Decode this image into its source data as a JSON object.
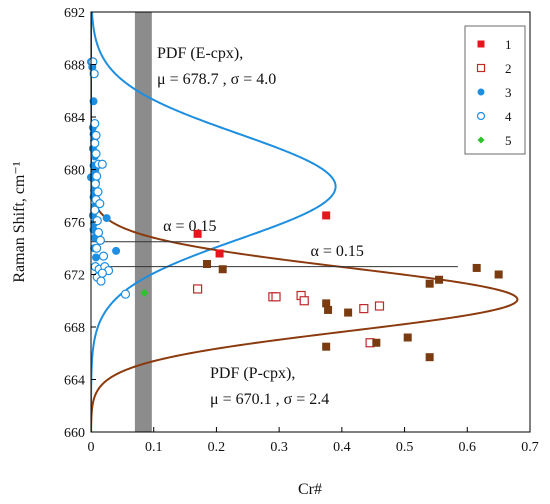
{
  "chart_data": {
    "type": "scatter",
    "xlabel": "Cr#",
    "ylabel": "Raman Shift, cm⁻¹",
    "xlim": [
      0,
      0.7
    ],
    "ylim": [
      660,
      692
    ],
    "xticks": [
      "0",
      "0.1",
      "0.2",
      "0.3",
      "0.4",
      "0.5",
      "0.6",
      "0.7"
    ],
    "yticks": [
      "660",
      "664",
      "668",
      "672",
      "676",
      "680",
      "684",
      "688",
      "692"
    ],
    "shaded_band": {
      "x_from": 0.07,
      "x_to": 0.097,
      "color": "#8c8c8c"
    },
    "distributions": [
      {
        "name": "PDF (E-cpx)",
        "label_line1": "PDF (E-cpx),",
        "label_line2": "μ = 678.7 , σ = 4.0",
        "mu": 678.7,
        "sigma": 4.0,
        "peak_cr": 0.39,
        "color": "#1e8fe0"
      },
      {
        "name": "PDF (P-cpx)",
        "label_line1": "PDF (P-cpx),",
        "label_line2": "μ = 670.1 , σ = 2.4",
        "mu": 670.1,
        "sigma": 2.4,
        "peak_cr": 0.68,
        "color": "#8b3a0e"
      }
    ],
    "thresholds": [
      {
        "label": "α = 0.15",
        "y": 674.5,
        "x_end": 0.205,
        "label_x": 0.115,
        "label_y": 675.3
      },
      {
        "label": "α = 0.15",
        "y": 672.6,
        "x_end": 0.585,
        "label_x": 0.35,
        "label_y": 673.4
      }
    ],
    "legend": {
      "position": "top-right",
      "entries": [
        {
          "label": "1",
          "marker": "square-filled",
          "color": "#e8141c"
        },
        {
          "label": "2",
          "marker": "square-open",
          "color": "#c0282c"
        },
        {
          "label": "3",
          "marker": "circle-filled",
          "color": "#1e8fe0"
        },
        {
          "label": "4",
          "marker": "circle-open",
          "color": "#1e8fe0"
        },
        {
          "label": "5",
          "marker": "diamond-filled",
          "color": "#2ec32e"
        }
      ]
    },
    "series": [
      {
        "name": "1",
        "marker": "square-filled",
        "color": "#e8141c",
        "points": [
          [
            0.17,
            675.1
          ],
          [
            0.205,
            673.6
          ],
          [
            0.375,
            676.5
          ]
        ]
      },
      {
        "name": "2",
        "marker": "square-open",
        "color": "#c0282c",
        "points": [
          [
            0.17,
            670.9
          ],
          [
            0.29,
            670.3
          ],
          [
            0.295,
            670.3
          ],
          [
            0.335,
            670.4
          ],
          [
            0.34,
            670.0
          ],
          [
            0.435,
            669.4
          ],
          [
            0.445,
            666.8
          ],
          [
            0.46,
            669.6
          ]
        ]
      },
      {
        "name": "3",
        "marker": "circle-filled",
        "color": "#1e8fe0",
        "points": [
          [
            0.0,
            688.2
          ],
          [
            0.002,
            687.8
          ],
          [
            0.004,
            685.2
          ],
          [
            0.003,
            683.2
          ],
          [
            0.004,
            682.7
          ],
          [
            0.005,
            682.2
          ],
          [
            0.003,
            681.6
          ],
          [
            0.006,
            681.0
          ],
          [
            0.004,
            680.3
          ],
          [
            0.007,
            680.0
          ],
          [
            0.005,
            679.6
          ],
          [
            0.0,
            679.4
          ],
          [
            0.008,
            679.0
          ],
          [
            0.005,
            678.4
          ],
          [
            0.004,
            677.9
          ],
          [
            0.006,
            677.2
          ],
          [
            0.003,
            676.5
          ],
          [
            0.005,
            675.9
          ],
          [
            0.004,
            675.4
          ],
          [
            0.006,
            674.8
          ],
          [
            0.005,
            674.0
          ],
          [
            0.008,
            673.3
          ],
          [
            0.025,
            676.3
          ],
          [
            0.04,
            673.8
          ]
        ]
      },
      {
        "name": "4",
        "marker": "circle-open",
        "color": "#1e8fe0",
        "points": [
          [
            0.003,
            688.2
          ],
          [
            0.005,
            687.3
          ],
          [
            0.006,
            683.5
          ],
          [
            0.008,
            682.6
          ],
          [
            0.006,
            682.0
          ],
          [
            0.008,
            681.2
          ],
          [
            0.012,
            680.4
          ],
          [
            0.018,
            680.4
          ],
          [
            0.009,
            679.5
          ],
          [
            0.007,
            678.9
          ],
          [
            0.011,
            678.3
          ],
          [
            0.008,
            677.7
          ],
          [
            0.014,
            677.4
          ],
          [
            0.006,
            676.9
          ],
          [
            0.01,
            676.1
          ],
          [
            0.012,
            675.2
          ],
          [
            0.015,
            674.6
          ],
          [
            0.009,
            674.0
          ],
          [
            0.02,
            673.4
          ],
          [
            0.007,
            672.6
          ],
          [
            0.013,
            672.4
          ],
          [
            0.022,
            672.6
          ],
          [
            0.01,
            671.8
          ],
          [
            0.016,
            671.5
          ],
          [
            0.028,
            672.3
          ],
          [
            0.018,
            672.1
          ],
          [
            0.055,
            670.5
          ]
        ]
      },
      {
        "name": "5",
        "marker": "diamond-filled",
        "color": "#2ec32e",
        "points": [
          [
            0.085,
            670.6
          ]
        ]
      },
      {
        "name": "",
        "marker": "square-filled",
        "color": "#7a3b10",
        "points": [
          [
            0.185,
            672.8
          ],
          [
            0.21,
            672.4
          ],
          [
            0.375,
            669.8
          ],
          [
            0.378,
            669.3
          ],
          [
            0.41,
            669.1
          ],
          [
            0.375,
            666.5
          ],
          [
            0.455,
            666.8
          ],
          [
            0.505,
            667.2
          ],
          [
            0.54,
            671.3
          ],
          [
            0.555,
            671.6
          ],
          [
            0.54,
            665.7
          ],
          [
            0.615,
            672.5
          ],
          [
            0.65,
            672.0
          ]
        ]
      }
    ]
  }
}
